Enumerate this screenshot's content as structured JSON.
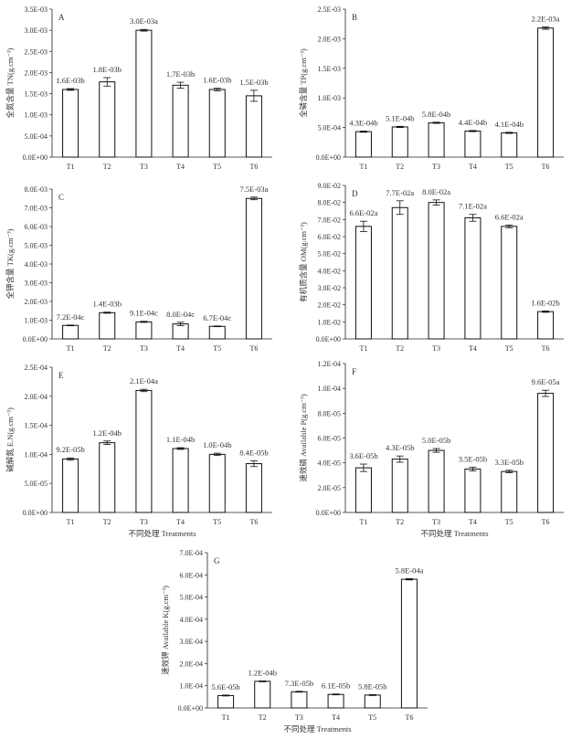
{
  "xtitle": "不同处理 Treatments",
  "chart_data": [
    {
      "type": "bar",
      "panel": "A",
      "ylabel": "全氮含量 TN(g.cm⁻³)",
      "categories": [
        "T1",
        "T2",
        "T3",
        "T4",
        "T5",
        "T6"
      ],
      "values": [
        0.0016,
        0.00178,
        0.003,
        0.0017,
        0.0016,
        0.00145
      ],
      "errors": [
        2e-05,
        0.0001,
        2e-05,
        7e-05,
        3e-05,
        0.00013
      ],
      "labels": [
        "1.6E-03b",
        "1.8E-03b",
        "3.0E-03a",
        "1.7E-03b",
        "1.6E-03b",
        "1.5E-03b"
      ],
      "yticks": [
        "0.0E+00",
        "5.0E-04",
        "1.0E-03",
        "1.5E-03",
        "2.0E-03",
        "2.5E-03",
        "3.0E-03",
        "3.5E-03"
      ],
      "ylim": [
        0,
        0.0035
      ],
      "show_xtitle": false
    },
    {
      "type": "bar",
      "panel": "B",
      "ylabel": "全磷含量 TP(g.cm⁻³)",
      "categories": [
        "T1",
        "T2",
        "T3",
        "T4",
        "T5",
        "T6"
      ],
      "values": [
        0.00043,
        0.00051,
        0.00058,
        0.00044,
        0.00041,
        0.00218
      ],
      "errors": [
        1e-05,
        1e-05,
        1e-05,
        1e-05,
        1e-05,
        2e-05
      ],
      "labels": [
        "4.3E-04b",
        "5.1E-04b",
        "5.8E-04b",
        "4.4E-04b",
        "4.1E-04b",
        "2.2E-03a"
      ],
      "yticks": [
        "0.0E+00",
        "5.0E-04",
        "1.0E-03",
        "1.5E-03",
        "2.0E-03",
        "2.5E-03"
      ],
      "ylim": [
        0,
        0.0025
      ],
      "show_xtitle": false
    },
    {
      "type": "bar",
      "panel": "C",
      "ylabel": "全钾含量 TK(g.cm⁻³)",
      "categories": [
        "T1",
        "T2",
        "T3",
        "T4",
        "T5",
        "T6"
      ],
      "values": [
        0.00072,
        0.0014,
        0.00091,
        0.0008,
        0.00067,
        0.0075
      ],
      "errors": [
        2e-05,
        3e-05,
        3e-05,
        9e-05,
        2e-05,
        7e-05
      ],
      "labels": [
        "7.2E-04c",
        "1.4E-03b",
        "9.1E-04c",
        "8.0E-04c",
        "6.7E-04c",
        "7.5E-03a"
      ],
      "yticks": [
        "0.0E+00",
        "1.0E-03",
        "2.0E-03",
        "3.0E-03",
        "4.0E-03",
        "5.0E-03",
        "6.0E-03",
        "7.0E-03",
        "8.0E-03"
      ],
      "ylim": [
        0,
        0.008
      ],
      "show_xtitle": false
    },
    {
      "type": "bar",
      "panel": "D",
      "ylabel": "有机质含量 OM(g.cm⁻³)",
      "categories": [
        "T1",
        "T2",
        "T3",
        "T4",
        "T5",
        "T6"
      ],
      "values": [
        0.066,
        0.077,
        0.08,
        0.071,
        0.066,
        0.016
      ],
      "errors": [
        0.003,
        0.004,
        0.0015,
        0.002,
        0.0008,
        0.0004
      ],
      "labels": [
        "6.6E-02a",
        "7.7E-02a",
        "8.0E-02a",
        "7.1E-02a",
        "6.6E-02a",
        "1.6E-02b"
      ],
      "yticks": [
        "0.0E+00",
        "1.0E-02",
        "2.0E-02",
        "3.0E-02",
        "4.0E-02",
        "5.0E-02",
        "6.0E-02",
        "7.0E-02",
        "8.0E-02",
        "9.0E-02"
      ],
      "ylim": [
        0,
        0.09
      ],
      "show_xtitle": false
    },
    {
      "type": "bar",
      "panel": "E",
      "ylabel": "碱解氮 E.N(g.cm⁻³)",
      "categories": [
        "T1",
        "T2",
        "T3",
        "T4",
        "T5",
        "T6"
      ],
      "values": [
        9.2e-05,
        0.00012,
        0.00021,
        0.00011,
        0.0001,
        8.4e-05
      ],
      "errors": [
        2e-06,
        3e-06,
        2e-06,
        1.5e-06,
        2e-06,
        5e-06
      ],
      "labels": [
        "9.2E-05b",
        "1.2E-04b",
        "2.1E-04a",
        "1.1E-04b",
        "1.0E-04b",
        "8.4E-05b"
      ],
      "yticks": [
        "0.0E+00",
        "5.0E-05",
        "1.0E-04",
        "1.5E-04",
        "2.0E-04",
        "2.5E-04"
      ],
      "ylim": [
        0,
        0.00025
      ],
      "show_xtitle": true
    },
    {
      "type": "bar",
      "panel": "F",
      "ylabel": "速效磷 Available P(g.cm⁻³)",
      "categories": [
        "T1",
        "T2",
        "T3",
        "T4",
        "T5",
        "T6"
      ],
      "values": [
        3.6e-05,
        4.3e-05,
        5e-05,
        3.5e-05,
        3.3e-05,
        9.6e-05
      ],
      "errors": [
        3e-06,
        2.5e-06,
        1.5e-06,
        1.5e-06,
        1e-06,
        2.5e-06
      ],
      "labels": [
        "3.6E-05b",
        "4.3E-05b",
        "5.0E-05b",
        "3.5E-05b",
        "3.3E-05b",
        "9.6E-05a"
      ],
      "yticks": [
        "0.0E+00",
        "2.0E-05",
        "4.0E-05",
        "6.0E-05",
        "8.0E-05",
        "1.0E-04",
        "1.2E-04"
      ],
      "ylim": [
        0,
        0.00012
      ],
      "show_xtitle": true
    },
    {
      "type": "bar",
      "panel": "G",
      "ylabel": "速效钾 Available K(g.cm⁻³)",
      "categories": [
        "T1",
        "T2",
        "T3",
        "T4",
        "T5",
        "T6"
      ],
      "values": [
        5.6e-05,
        0.00012,
        7.3e-05,
        6.1e-05,
        5.8e-05,
        0.00058
      ],
      "errors": [
        2e-06,
        2e-06,
        2e-06,
        2e-06,
        2e-06,
        3e-06
      ],
      "labels": [
        "5.6E-05b",
        "1.2E-04b",
        "7.3E-05b",
        "6.1E-05b",
        "5.8E-05b",
        "5.8E-04a"
      ],
      "yticks": [
        "0.0E+00",
        "1.0E-04",
        "2.0E-04",
        "3.0E-04",
        "4.0E-04",
        "5.0E-04",
        "6.0E-04",
        "7.0E-04"
      ],
      "ylim": [
        0,
        0.0007
      ],
      "show_xtitle": true
    }
  ]
}
